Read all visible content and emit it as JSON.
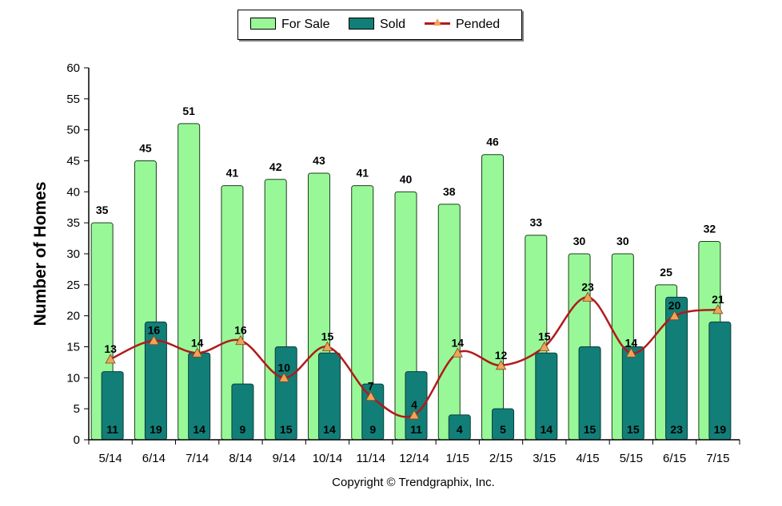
{
  "chart_data": {
    "type": "bar",
    "categories": [
      "5/14",
      "6/14",
      "7/14",
      "8/14",
      "9/14",
      "10/14",
      "11/14",
      "12/14",
      "1/15",
      "2/15",
      "3/15",
      "4/15",
      "5/15",
      "6/15",
      "7/15"
    ],
    "series": [
      {
        "name": "For Sale",
        "type": "bar",
        "color": "#98f898",
        "values": [
          35,
          45,
          51,
          41,
          42,
          43,
          41,
          40,
          38,
          46,
          33,
          30,
          30,
          25,
          32
        ]
      },
      {
        "name": "Sold",
        "type": "bar",
        "color": "#127e78",
        "values": [
          11,
          19,
          14,
          9,
          15,
          14,
          9,
          11,
          4,
          5,
          14,
          15,
          15,
          23,
          19
        ]
      },
      {
        "name": "Pended",
        "type": "line",
        "color": "#b11a1a",
        "marker_color": "#f2a35a",
        "values": [
          13,
          16,
          14,
          16,
          10,
          15,
          7,
          4,
          14,
          12,
          15,
          23,
          14,
          20,
          21
        ]
      }
    ],
    "ylabel": "Number of Homes",
    "xlabel": "",
    "ylim": [
      0,
      60
    ],
    "yticks": [
      0,
      5,
      10,
      15,
      20,
      25,
      30,
      35,
      40,
      45,
      50,
      55,
      60
    ],
    "grid": false,
    "legend_position": "top-center"
  },
  "legend": {
    "for_sale": "For Sale",
    "sold": "Sold",
    "pended": "Pended"
  },
  "copyright": "Copyright © Trendgraphix, Inc."
}
